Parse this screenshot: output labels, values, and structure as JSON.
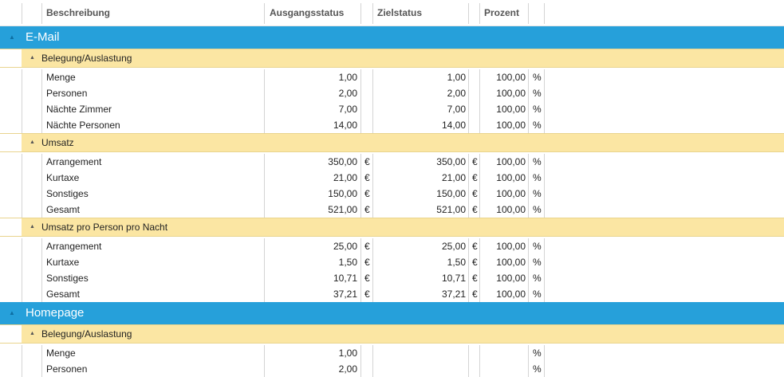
{
  "columns": {
    "description": "Beschreibung",
    "start_status": "Ausgangsstatus",
    "target_status": "Zielstatus",
    "percent": "Prozent"
  },
  "groups": [
    {
      "name": "E-Mail",
      "subgroups": [
        {
          "name": "Belegung/Auslastung",
          "rows": [
            {
              "label": "Menge",
              "start": "1,00",
              "start_unit": "",
              "target": "1,00",
              "target_unit": "",
              "pct": "100,00",
              "pct_unit": "%"
            },
            {
              "label": "Personen",
              "start": "2,00",
              "start_unit": "",
              "target": "2,00",
              "target_unit": "",
              "pct": "100,00",
              "pct_unit": "%"
            },
            {
              "label": "Nächte Zimmer",
              "start": "7,00",
              "start_unit": "",
              "target": "7,00",
              "target_unit": "",
              "pct": "100,00",
              "pct_unit": "%"
            },
            {
              "label": "Nächte Personen",
              "start": "14,00",
              "start_unit": "",
              "target": "14,00",
              "target_unit": "",
              "pct": "100,00",
              "pct_unit": "%"
            }
          ]
        },
        {
          "name": "Umsatz",
          "rows": [
            {
              "label": "Arrangement",
              "start": "350,00",
              "start_unit": "€",
              "target": "350,00",
              "target_unit": "€",
              "pct": "100,00",
              "pct_unit": "%"
            },
            {
              "label": "Kurtaxe",
              "start": "21,00",
              "start_unit": "€",
              "target": "21,00",
              "target_unit": "€",
              "pct": "100,00",
              "pct_unit": "%"
            },
            {
              "label": "Sonstiges",
              "start": "150,00",
              "start_unit": "€",
              "target": "150,00",
              "target_unit": "€",
              "pct": "100,00",
              "pct_unit": "%"
            },
            {
              "label": "Gesamt",
              "start": "521,00",
              "start_unit": "€",
              "target": "521,00",
              "target_unit": "€",
              "pct": "100,00",
              "pct_unit": "%"
            }
          ]
        },
        {
          "name": "Umsatz pro Person pro Nacht",
          "rows": [
            {
              "label": "Arrangement",
              "start": "25,00",
              "start_unit": "€",
              "target": "25,00",
              "target_unit": "€",
              "pct": "100,00",
              "pct_unit": "%"
            },
            {
              "label": "Kurtaxe",
              "start": "1,50",
              "start_unit": "€",
              "target": "1,50",
              "target_unit": "€",
              "pct": "100,00",
              "pct_unit": "%"
            },
            {
              "label": "Sonstiges",
              "start": "10,71",
              "start_unit": "€",
              "target": "10,71",
              "target_unit": "€",
              "pct": "100,00",
              "pct_unit": "%"
            },
            {
              "label": "Gesamt",
              "start": "37,21",
              "start_unit": "€",
              "target": "37,21",
              "target_unit": "€",
              "pct": "100,00",
              "pct_unit": "%"
            }
          ]
        }
      ]
    },
    {
      "name": "Homepage",
      "subgroups": [
        {
          "name": "Belegung/Auslastung",
          "rows": [
            {
              "label": "Menge",
              "start": "1,00",
              "start_unit": "",
              "target": "",
              "target_unit": "",
              "pct": "",
              "pct_unit": "%"
            },
            {
              "label": "Personen",
              "start": "2,00",
              "start_unit": "",
              "target": "",
              "target_unit": "",
              "pct": "",
              "pct_unit": "%"
            }
          ]
        }
      ]
    }
  ],
  "icons": {
    "expander_group": "collapse-triangle-icon",
    "expander_subgroup": "collapse-triangle-icon"
  },
  "colors": {
    "group_header": "#26a0da",
    "subgroup_header": "#fbe6a3",
    "grid_line": "#d4d4d4"
  }
}
